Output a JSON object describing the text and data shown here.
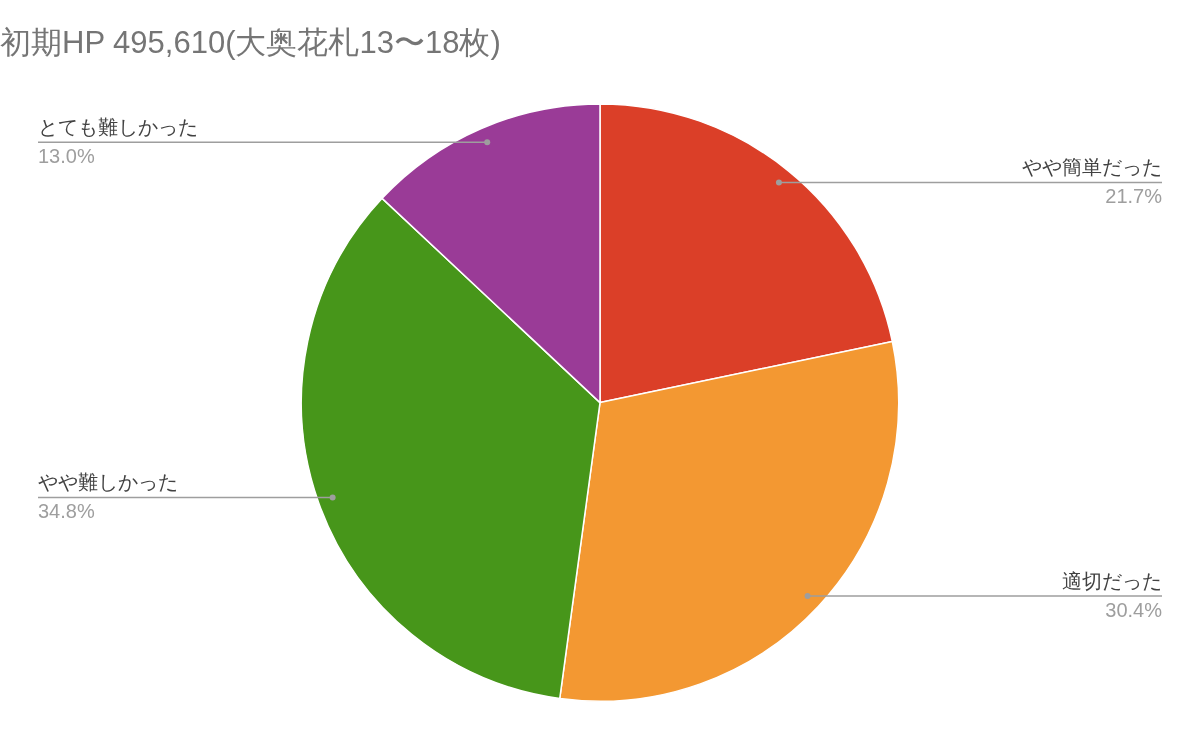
{
  "chart_data": {
    "type": "pie",
    "title": "初期HP 495,610(大奥花札13〜18枚)",
    "categories": [
      "やや簡単だった",
      "適切だった",
      "やや難しかった",
      "とても難しかった"
    ],
    "values": [
      21.7,
      30.4,
      34.8,
      13.0
    ],
    "value_labels": [
      "21.7%",
      "30.4%",
      "34.8%",
      "13.0%"
    ],
    "colors": [
      "#db3f28",
      "#f39832",
      "#47961a",
      "#9a3b97"
    ],
    "legend": false
  }
}
